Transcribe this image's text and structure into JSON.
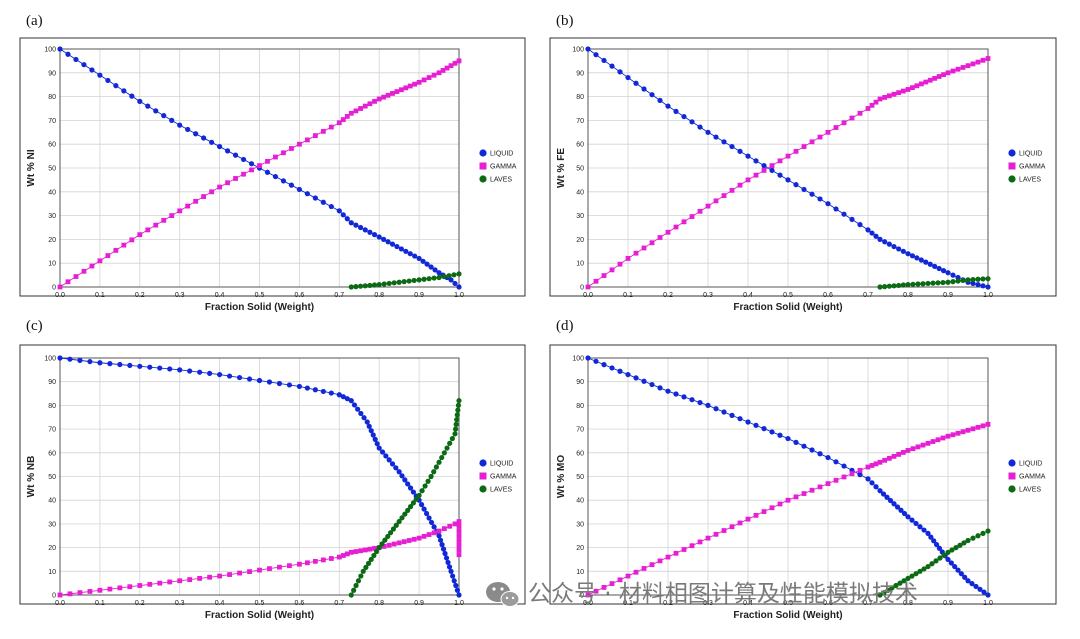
{
  "watermark": {
    "text": "公众号 · 材料相图计算及性能模拟技术",
    "icon": "wechat-icon"
  },
  "colors": {
    "liquid": "#1028d8",
    "gamma": "#e61fd2",
    "laves": "#0d6a14",
    "grid": "#d4d4d4",
    "frame": "#333333"
  },
  "chart_data": [
    {
      "type": "line",
      "panel": "(a)",
      "xlabel": "Fraction Solid (Weight)",
      "ylabel": "Wt % NI",
      "xlim": [
        0,
        1
      ],
      "ylim": [
        0,
        100
      ],
      "xticks": [
        "0.0",
        "0.1",
        "0.2",
        "0.3",
        "0.4",
        "0.5",
        "0.6",
        "0.7",
        "0.8",
        "0.9",
        "1.0"
      ],
      "yticks": [
        "0",
        "10",
        "20",
        "30",
        "40",
        "50",
        "60",
        "70",
        "80",
        "90",
        "100"
      ],
      "legend": [
        "LIQUID",
        "GAMMA",
        "LAVES"
      ],
      "legend_position": "right",
      "series": [
        {
          "name": "LIQUID",
          "marker": "circle",
          "points": [
            [
              0,
              100
            ],
            [
              0.1,
              89
            ],
            [
              0.2,
              78
            ],
            [
              0.3,
              68
            ],
            [
              0.4,
              59
            ],
            [
              0.5,
              50
            ],
            [
              0.6,
              41
            ],
            [
              0.7,
              32
            ],
            [
              0.73,
              27
            ],
            [
              0.8,
              21
            ],
            [
              0.9,
              12
            ],
            [
              0.95,
              6
            ],
            [
              0.98,
              3
            ],
            [
              1.0,
              0
            ]
          ]
        },
        {
          "name": "GAMMA",
          "marker": "square",
          "points": [
            [
              0,
              0
            ],
            [
              0.1,
              11
            ],
            [
              0.2,
              22
            ],
            [
              0.3,
              32
            ],
            [
              0.4,
              42
            ],
            [
              0.5,
              51
            ],
            [
              0.6,
              60
            ],
            [
              0.7,
              69
            ],
            [
              0.73,
              73
            ],
            [
              0.8,
              79
            ],
            [
              0.9,
              86
            ],
            [
              0.95,
              90
            ],
            [
              1.0,
              95
            ]
          ]
        },
        {
          "name": "LAVES",
          "marker": "circle",
          "points": [
            [
              0.73,
              0
            ],
            [
              0.8,
              1
            ],
            [
              0.85,
              2
            ],
            [
              0.9,
              3
            ],
            [
              0.95,
              4
            ],
            [
              1.0,
              5.5
            ]
          ]
        }
      ]
    },
    {
      "type": "line",
      "panel": "(b)",
      "xlabel": "Fraction Solid (Weight)",
      "ylabel": "Wt % FE",
      "xlim": [
        0,
        1
      ],
      "ylim": [
        0,
        100
      ],
      "xticks": [
        "0.0",
        "0.1",
        "0.2",
        "0.3",
        "0.4",
        "0.5",
        "0.6",
        "0.7",
        "0.8",
        "0.9",
        "1.0"
      ],
      "yticks": [
        "0",
        "10",
        "20",
        "30",
        "40",
        "50",
        "60",
        "70",
        "80",
        "90",
        "100"
      ],
      "legend": [
        "LIQUID",
        "GAMMA",
        "LAVES"
      ],
      "legend_position": "right",
      "series": [
        {
          "name": "LIQUID",
          "marker": "circle",
          "points": [
            [
              0,
              100
            ],
            [
              0.1,
              88
            ],
            [
              0.2,
              76
            ],
            [
              0.3,
              65
            ],
            [
              0.4,
              55
            ],
            [
              0.5,
              45
            ],
            [
              0.6,
              35
            ],
            [
              0.7,
              24
            ],
            [
              0.73,
              20
            ],
            [
              0.8,
              14
            ],
            [
              0.9,
              6
            ],
            [
              0.95,
              2
            ],
            [
              1.0,
              0
            ]
          ]
        },
        {
          "name": "GAMMA",
          "marker": "square",
          "points": [
            [
              0,
              0
            ],
            [
              0.1,
              12
            ],
            [
              0.2,
              23
            ],
            [
              0.3,
              34
            ],
            [
              0.4,
              45
            ],
            [
              0.5,
              55
            ],
            [
              0.6,
              65
            ],
            [
              0.7,
              75
            ],
            [
              0.73,
              79
            ],
            [
              0.8,
              83
            ],
            [
              0.9,
              90
            ],
            [
              0.95,
              93
            ],
            [
              1.0,
              96
            ]
          ]
        },
        {
          "name": "LAVES",
          "marker": "circle",
          "points": [
            [
              0.73,
              0
            ],
            [
              0.8,
              1
            ],
            [
              0.9,
              2
            ],
            [
              0.95,
              3
            ],
            [
              1.0,
              3.5
            ]
          ]
        }
      ]
    },
    {
      "type": "line",
      "panel": "(c)",
      "xlabel": "Fraction Solid (Weight)",
      "ylabel": "Wt % NB",
      "xlim": [
        0,
        1
      ],
      "ylim": [
        0,
        100
      ],
      "xticks": [
        "0.0",
        "0.1",
        "0.2",
        "0.3",
        "0.4",
        "0.5",
        "0.6",
        "0.7",
        "0.8",
        "0.9",
        "1.0"
      ],
      "yticks": [
        "0",
        "10",
        "20",
        "30",
        "40",
        "50",
        "60",
        "70",
        "80",
        "90",
        "100"
      ],
      "legend": [
        "LIQUID",
        "GAMMA",
        "LAVES"
      ],
      "legend_position": "right",
      "series": [
        {
          "name": "LIQUID",
          "marker": "circle",
          "points": [
            [
              0,
              100
            ],
            [
              0.1,
              98
            ],
            [
              0.2,
              96.5
            ],
            [
              0.3,
              95
            ],
            [
              0.4,
              93
            ],
            [
              0.5,
              90.5
            ],
            [
              0.6,
              88
            ],
            [
              0.7,
              84.5
            ],
            [
              0.73,
              82
            ],
            [
              0.77,
              73
            ],
            [
              0.8,
              62
            ],
            [
              0.85,
              52
            ],
            [
              0.9,
              40
            ],
            [
              0.95,
              25
            ],
            [
              0.98,
              10
            ],
            [
              1.0,
              0
            ]
          ]
        },
        {
          "name": "GAMMA",
          "marker": "square",
          "points": [
            [
              0,
              0
            ],
            [
              0.1,
              2
            ],
            [
              0.2,
              4
            ],
            [
              0.3,
              6
            ],
            [
              0.4,
              8
            ],
            [
              0.5,
              10.5
            ],
            [
              0.6,
              13
            ],
            [
              0.7,
              16
            ],
            [
              0.73,
              18
            ],
            [
              0.8,
              20
            ],
            [
              0.9,
              24
            ],
            [
              0.95,
              27
            ],
            [
              0.99,
              30
            ],
            [
              1.0,
              31
            ],
            [
              1.0,
              17
            ]
          ]
        },
        {
          "name": "LAVES",
          "marker": "circle",
          "points": [
            [
              0.73,
              0
            ],
            [
              0.76,
              10
            ],
            [
              0.8,
              20
            ],
            [
              0.85,
              31
            ],
            [
              0.9,
              42
            ],
            [
              0.93,
              50
            ],
            [
              0.95,
              56
            ],
            [
              0.97,
              62
            ],
            [
              0.99,
              68
            ],
            [
              1.0,
              82
            ]
          ]
        }
      ]
    },
    {
      "type": "line",
      "panel": "(d)",
      "xlabel": "Fraction Solid (Weight)",
      "ylabel": "Wt % MO",
      "xlim": [
        0,
        1
      ],
      "ylim": [
        0,
        100
      ],
      "xticks": [
        "0.0",
        "0.1",
        "0.2",
        "0.3",
        "0.4",
        "0.5",
        "0.6",
        "0.7",
        "0.8",
        "0.9",
        "1.0"
      ],
      "yticks": [
        "0",
        "10",
        "20",
        "30",
        "40",
        "50",
        "60",
        "70",
        "80",
        "90",
        "100"
      ],
      "legend": [
        "LIQUID",
        "GAMMA",
        "LAVES"
      ],
      "legend_position": "right",
      "series": [
        {
          "name": "LIQUID",
          "marker": "circle",
          "points": [
            [
              0,
              100
            ],
            [
              0.1,
              93
            ],
            [
              0.2,
              86
            ],
            [
              0.3,
              80
            ],
            [
              0.4,
              73
            ],
            [
              0.5,
              66
            ],
            [
              0.6,
              58
            ],
            [
              0.7,
              49
            ],
            [
              0.73,
              44
            ],
            [
              0.8,
              33
            ],
            [
              0.85,
              26
            ],
            [
              0.9,
              15
            ],
            [
              0.95,
              6
            ],
            [
              1.0,
              0
            ]
          ]
        },
        {
          "name": "GAMMA",
          "marker": "square",
          "points": [
            [
              0,
              0
            ],
            [
              0.1,
              8
            ],
            [
              0.2,
              16
            ],
            [
              0.3,
              24
            ],
            [
              0.4,
              32
            ],
            [
              0.5,
              40
            ],
            [
              0.6,
              47
            ],
            [
              0.7,
              54
            ],
            [
              0.73,
              56
            ],
            [
              0.8,
              61
            ],
            [
              0.9,
              67
            ],
            [
              1.0,
              72
            ]
          ]
        },
        {
          "name": "LAVES",
          "marker": "circle",
          "points": [
            [
              0.73,
              0
            ],
            [
              0.78,
              5
            ],
            [
              0.85,
              12
            ],
            [
              0.9,
              18
            ],
            [
              0.95,
              23
            ],
            [
              1.0,
              27
            ]
          ]
        }
      ]
    }
  ]
}
